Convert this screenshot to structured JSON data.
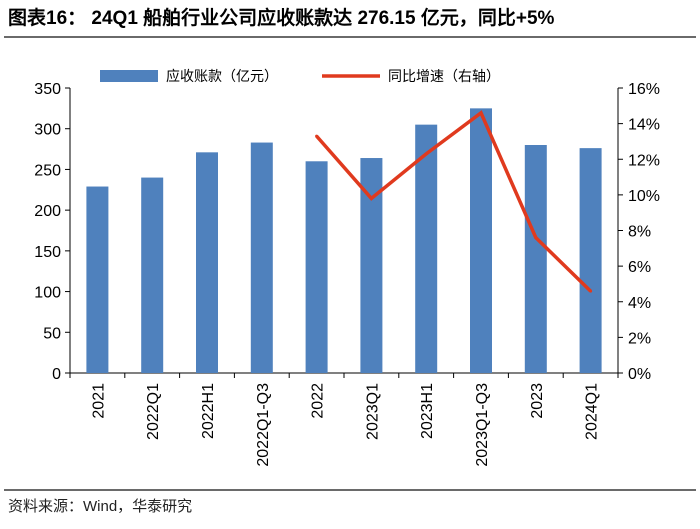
{
  "title": "图表16：  24Q1 船舶行业公司应收账款达 276.15 亿元，同比+5%",
  "source": "资料来源：Wind，华泰研究",
  "chart_data": {
    "type": "bar",
    "categories": [
      "2021",
      "2022Q1",
      "2022H1",
      "2022Q1-Q3",
      "2022",
      "2023Q1",
      "2023H1",
      "2023Q1-Q3",
      "2023",
      "2024Q1"
    ],
    "series": [
      {
        "name": "应收账款（亿元）",
        "type": "bar",
        "axis": "left",
        "color": "#4f81bd",
        "values": [
          229,
          240,
          271,
          283,
          260,
          264,
          305,
          325,
          280,
          276.15
        ]
      },
      {
        "name": "同比增速（右轴）",
        "type": "line",
        "axis": "right",
        "color": "#e03a1e",
        "values": [
          null,
          null,
          null,
          null,
          13.3,
          9.8,
          12.3,
          14.6,
          7.6,
          4.6
        ]
      }
    ],
    "ylim_left": [
      0,
      350
    ],
    "yticks_left": [
      "0",
      "50",
      "100",
      "150",
      "200",
      "250",
      "300",
      "350"
    ],
    "ylim_right": [
      0,
      16
    ],
    "yticks_right": [
      "0%",
      "2%",
      "4%",
      "6%",
      "8%",
      "10%",
      "12%",
      "14%",
      "16%"
    ],
    "grid": false,
    "legend_position": "top"
  }
}
